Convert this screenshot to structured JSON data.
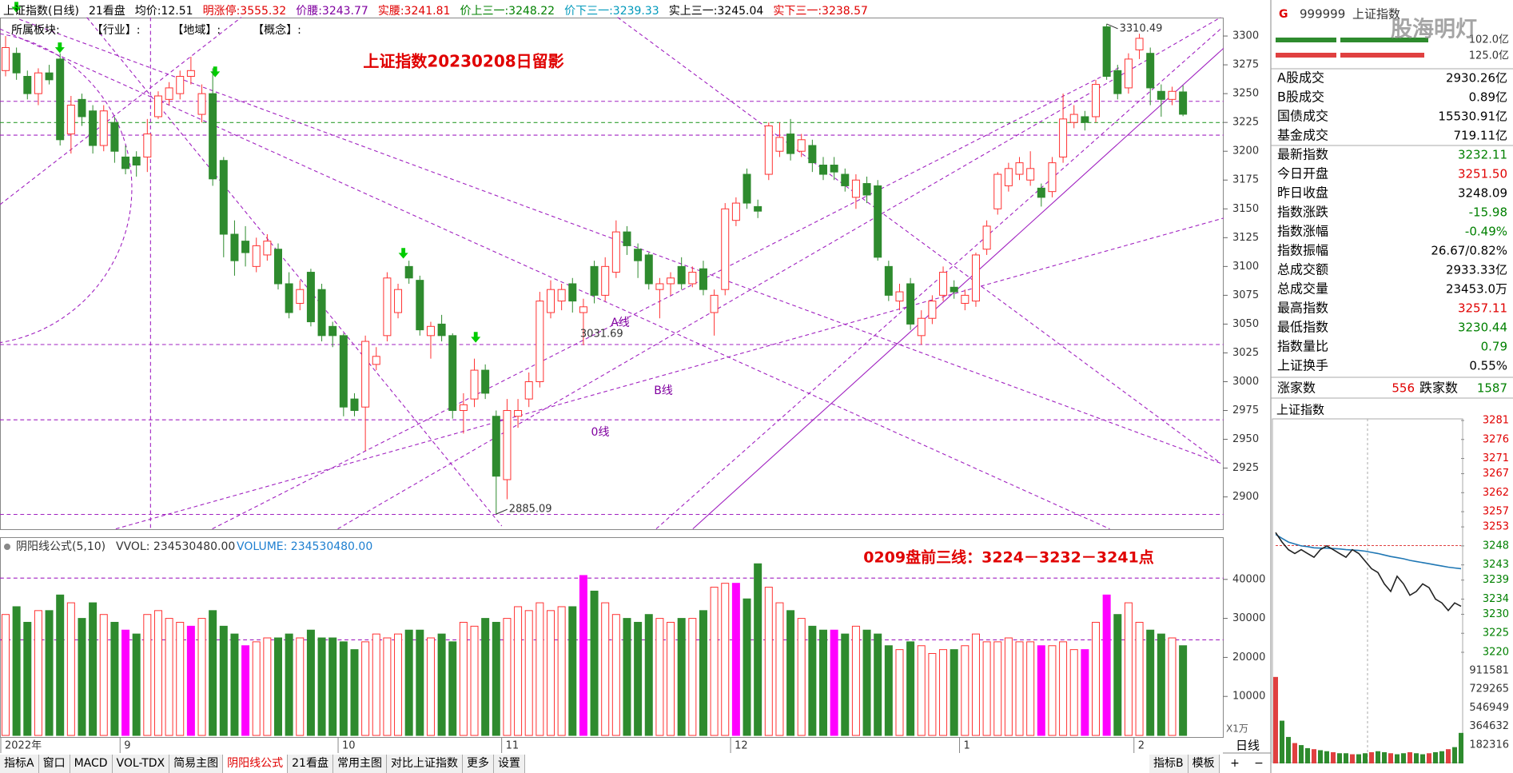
{
  "toolbar": {
    "title": "上证指数(日线)",
    "board": "21看盘",
    "items": [
      {
        "label": "均价:",
        "value": 12.51,
        "color": "#000000"
      },
      {
        "label": "明涨停:",
        "value": 3555.32,
        "color": "#e00000"
      },
      {
        "label": "价腰:",
        "value": 3243.77,
        "color": "#8000a0"
      },
      {
        "label": "实腰:",
        "value": 3241.81,
        "color": "#e00000"
      },
      {
        "label": "价上三一:",
        "value": 3248.22,
        "color": "#008000"
      },
      {
        "label": "价下三一:",
        "value": 3239.33,
        "color": "#0099bb"
      },
      {
        "label": "实上三一:",
        "value": 3245.04,
        "color": "#000000"
      },
      {
        "label": "实下三一:",
        "value": 3238.57,
        "color": "#e00000"
      }
    ],
    "row2": [
      "所属板块:",
      "【行业】:",
      "【地域】:",
      "【概念】:"
    ]
  },
  "chart_data": {
    "type": "candlestick",
    "title": "上证指数20230208日留影",
    "annotations": [
      "0209盘前三线：3224－3232－3241点",
      "A线",
      "B线",
      "0线"
    ],
    "up_color": "#ff3232",
    "down_color": "#2e8b2e",
    "ylim": [
      2872,
      3316
    ],
    "yticks": [
      2900,
      2925,
      2950,
      2975,
      3000,
      3025,
      3050,
      3075,
      3100,
      3125,
      3150,
      3175,
      3200,
      3225,
      3250,
      3275,
      3300
    ],
    "xticks": [
      {
        "value": 0,
        "label": "2022年"
      },
      {
        "value": 11,
        "label": "9"
      },
      {
        "value": 31,
        "label": "10"
      },
      {
        "value": 46,
        "label": "11"
      },
      {
        "value": 67,
        "label": "12"
      },
      {
        "value": 88,
        "label": "1"
      },
      {
        "value": 104,
        "label": "2"
      }
    ],
    "candles": [
      [
        3270,
        3300,
        3265,
        3290
      ],
      [
        3285,
        3290,
        3262,
        3268
      ],
      [
        3265,
        3270,
        3245,
        3250
      ],
      [
        3250,
        3272,
        3240,
        3268
      ],
      [
        3268,
        3275,
        3258,
        3262
      ],
      [
        3280,
        3285,
        3205,
        3210
      ],
      [
        3215,
        3248,
        3198,
        3240
      ],
      [
        3245,
        3250,
        3222,
        3230
      ],
      [
        3235,
        3240,
        3198,
        3205
      ],
      [
        3205,
        3240,
        3200,
        3235
      ],
      [
        3225,
        3230,
        3190,
        3200
      ],
      [
        3195,
        3205,
        3180,
        3185
      ],
      [
        3195,
        3200,
        3178,
        3188
      ],
      [
        3195,
        3228,
        3182,
        3215
      ],
      [
        3230,
        3252,
        3228,
        3248
      ],
      [
        3245,
        3260,
        3240,
        3255
      ],
      [
        3250,
        3270,
        3245,
        3265
      ],
      [
        3265,
        3282,
        3258,
        3270
      ],
      [
        3232,
        3258,
        3225,
        3250
      ],
      [
        3250,
        3272,
        3170,
        3176
      ],
      [
        3192,
        3195,
        3108,
        3128
      ],
      [
        3128,
        3140,
        3092,
        3105
      ],
      [
        3122,
        3135,
        3100,
        3112
      ],
      [
        3100,
        3125,
        3095,
        3118
      ],
      [
        3110,
        3128,
        3105,
        3122
      ],
      [
        3115,
        3120,
        3080,
        3085
      ],
      [
        3085,
        3095,
        3055,
        3060
      ],
      [
        3068,
        3088,
        3062,
        3080
      ],
      [
        3095,
        3098,
        3048,
        3052
      ],
      [
        3080,
        3085,
        3035,
        3040
      ],
      [
        3048,
        3052,
        3030,
        3040
      ],
      [
        3040,
        3042,
        2970,
        2978
      ],
      [
        2985,
        2990,
        2970,
        2975
      ],
      [
        2978,
        3040,
        2940,
        3035
      ],
      [
        3015,
        3030,
        3010,
        3022
      ],
      [
        3040,
        3095,
        3035,
        3090
      ],
      [
        3060,
        3085,
        3055,
        3080
      ],
      [
        3100,
        3105,
        3085,
        3090
      ],
      [
        3088,
        3092,
        3040,
        3045
      ],
      [
        3040,
        3052,
        3020,
        3048
      ],
      [
        3050,
        3058,
        3035,
        3040
      ],
      [
        3040,
        3042,
        2968,
        2975
      ],
      [
        2975,
        2990,
        2955,
        2980
      ],
      [
        2985,
        3020,
        2978,
        3010
      ],
      [
        3010,
        3015,
        2985,
        2990
      ],
      [
        2970,
        2975,
        2885.09,
        2918
      ],
      [
        2915,
        2985,
        2898,
        2975
      ],
      [
        2970,
        2985,
        2960,
        2975
      ],
      [
        2985,
        3008,
        2978,
        3000
      ],
      [
        3000,
        3078,
        2995,
        3070
      ],
      [
        3060,
        3088,
        3055,
        3080
      ],
      [
        3070,
        3085,
        3062,
        3080
      ],
      [
        3085,
        3090,
        3060,
        3070
      ],
      [
        3060,
        3072,
        3031.69,
        3065
      ],
      [
        3100,
        3105,
        3068,
        3075
      ],
      [
        3075,
        3108,
        3070,
        3100
      ],
      [
        3095,
        3140,
        3090,
        3130
      ],
      [
        3130,
        3135,
        3110,
        3118
      ],
      [
        3115,
        3120,
        3090,
        3105
      ],
      [
        3110,
        3112,
        3080,
        3085
      ],
      [
        3080,
        3090,
        3055,
        3085
      ],
      [
        3085,
        3095,
        3075,
        3090
      ],
      [
        3100,
        3108,
        3080,
        3085
      ],
      [
        3085,
        3100,
        3082,
        3095
      ],
      [
        3098,
        3105,
        3075,
        3080
      ],
      [
        3060,
        3080,
        3040,
        3075
      ],
      [
        3080,
        3155,
        3075,
        3150
      ],
      [
        3140,
        3160,
        3135,
        3155
      ],
      [
        3180,
        3185,
        3150,
        3155
      ],
      [
        3152,
        3158,
        3142,
        3148
      ],
      [
        3180,
        3225,
        3175,
        3222
      ],
      [
        3200,
        3225,
        3195,
        3212
      ],
      [
        3215,
        3228,
        3192,
        3198
      ],
      [
        3200,
        3215,
        3195,
        3210
      ],
      [
        3205,
        3210,
        3182,
        3190
      ],
      [
        3188,
        3195,
        3175,
        3180
      ],
      [
        3188,
        3195,
        3175,
        3182
      ],
      [
        3180,
        3185,
        3165,
        3170
      ],
      [
        3160,
        3180,
        3150,
        3175
      ],
      [
        3172,
        3178,
        3155,
        3162
      ],
      [
        3170,
        3175,
        3105,
        3108
      ],
      [
        3100,
        3105,
        3070,
        3075
      ],
      [
        3070,
        3085,
        3062,
        3078
      ],
      [
        3085,
        3090,
        3045,
        3050
      ],
      [
        3040,
        3062,
        3032,
        3055
      ],
      [
        3055,
        3075,
        3050,
        3070
      ],
      [
        3075,
        3100,
        3070,
        3095
      ],
      [
        3082,
        3088,
        3072,
        3078
      ],
      [
        3068,
        3080,
        3062,
        3075
      ],
      [
        3070,
        3112,
        3065,
        3110
      ],
      [
        3115,
        3140,
        3110,
        3135
      ],
      [
        3150,
        3182,
        3145,
        3180
      ],
      [
        3170,
        3190,
        3165,
        3185
      ],
      [
        3180,
        3195,
        3175,
        3190
      ],
      [
        3175,
        3200,
        3170,
        3185
      ],
      [
        3168,
        3172,
        3152,
        3160
      ],
      [
        3165,
        3195,
        3160,
        3190
      ],
      [
        3195,
        3250,
        3190,
        3228
      ],
      [
        3225,
        3240,
        3220,
        3232
      ],
      [
        3230,
        3235,
        3218,
        3225
      ],
      [
        3230,
        3262,
        3225,
        3258
      ],
      [
        3308,
        3310.49,
        3262,
        3265
      ],
      [
        3270,
        3275,
        3245,
        3250
      ],
      [
        3255,
        3285,
        3250,
        3280
      ],
      [
        3288,
        3302,
        3280,
        3298
      ],
      [
        3285,
        3290,
        3240,
        3255
      ],
      [
        3252,
        3258,
        3230,
        3245
      ],
      [
        3245,
        3256,
        3240,
        3252
      ],
      [
        3251.5,
        3257.11,
        3230.44,
        3232.11
      ]
    ],
    "volume": {
      "title": "阴阳线公式(5,10)",
      "vvol": "VVOL: 234530480.00",
      "volume_label": "VOLUME: 234530480.00",
      "unit": "X1万",
      "ylim": [
        0,
        50000
      ],
      "yticks": [
        10000,
        20000,
        30000,
        40000
      ],
      "highlight": [
        11,
        17,
        22,
        53,
        67,
        76,
        95,
        99,
        101
      ],
      "highlight_color": "#ff00ff",
      "values": [
        31000,
        33000,
        29000,
        32000,
        32000,
        36000,
        34000,
        30000,
        34000,
        31000,
        29000,
        27000,
        26000,
        31000,
        32000,
        30000,
        29000,
        28000,
        30000,
        32000,
        28000,
        26000,
        23000,
        24000,
        25000,
        25000,
        26000,
        25000,
        27000,
        25000,
        25000,
        24000,
        22000,
        24000,
        26000,
        25000,
        26000,
        27000,
        27000,
        25000,
        26000,
        24000,
        29000,
        28000,
        30000,
        29000,
        30000,
        33000,
        32000,
        34000,
        32000,
        33000,
        33000,
        41000,
        37000,
        34000,
        31000,
        30000,
        29000,
        31000,
        30000,
        29000,
        30000,
        30000,
        32000,
        38000,
        39000,
        39000,
        35000,
        44000,
        38000,
        34000,
        32000,
        30000,
        28000,
        27000,
        27000,
        26000,
        28000,
        27000,
        26000,
        23000,
        22000,
        24000,
        23000,
        21000,
        22000,
        22000,
        23000,
        26000,
        24000,
        24000,
        25000,
        24000,
        24000,
        23000,
        23000,
        24000,
        22000,
        22000,
        29000,
        36000,
        31000,
        34000,
        29000,
        27000,
        26000,
        25000,
        23000
      ]
    }
  },
  "quote": {
    "market": "G",
    "code": "999999",
    "name": "上证指数",
    "watermark": "股海明灯",
    "buy_label": "102.0亿",
    "sell_label": "125.0亿",
    "rows": [
      {
        "label": "A股成交",
        "value": "2930.26亿",
        "color": "#000000"
      },
      {
        "label": "B股成交",
        "value": "0.89亿",
        "color": "#000000"
      },
      {
        "label": "国债成交",
        "value": "15530.91亿",
        "color": "#000000"
      },
      {
        "label": "基金成交",
        "value": "719.11亿",
        "color": "#000000"
      },
      {
        "label": "最新指数",
        "value": "3232.11",
        "color": "#008000"
      },
      {
        "label": "今日开盘",
        "value": "3251.50",
        "color": "#e00000"
      },
      {
        "label": "昨日收盘",
        "value": "3248.09",
        "color": "#000000"
      },
      {
        "label": "指数涨跌",
        "value": "-15.98",
        "color": "#008000"
      },
      {
        "label": "指数涨幅",
        "value": "-0.49%",
        "color": "#008000"
      },
      {
        "label": "指数振幅",
        "value": "26.67/0.82%",
        "color": "#000000"
      },
      {
        "label": "总成交额",
        "value": "2933.33亿",
        "color": "#000000"
      },
      {
        "label": "总成交量",
        "value": "23453.0万",
        "color": "#000000"
      },
      {
        "label": "最高指数",
        "value": "3257.11",
        "color": "#e00000"
      },
      {
        "label": "最低指数",
        "value": "3230.44",
        "color": "#008000"
      },
      {
        "label": "指数量比",
        "value": "0.79",
        "color": "#008000"
      },
      {
        "label": "上证换手",
        "value": "0.55%",
        "color": "#000000"
      }
    ],
    "up_label": "涨家数",
    "up": 556,
    "down_label": "跌家数",
    "down": 1587
  },
  "intraday": {
    "title": "上证指数",
    "prev_close": 3248.09,
    "ylim": [
      3220,
      3281
    ],
    "yticks": [
      3281,
      3276,
      3271,
      3267,
      3262,
      3257,
      3253,
      3248,
      3243,
      3239,
      3234,
      3230,
      3225,
      3220
    ],
    "price": [
      3251.5,
      3249,
      3247,
      3246,
      3247,
      3246,
      3245,
      3247,
      3248,
      3247,
      3246,
      3245,
      3247,
      3246,
      3244,
      3242,
      3241,
      3238,
      3236,
      3240,
      3238,
      3235,
      3236,
      3238,
      3237,
      3234,
      3233,
      3231,
      3233,
      3232.11
    ],
    "avg": [
      3251,
      3250,
      3249,
      3248.5,
      3248,
      3247.8,
      3247.5,
      3247.4,
      3247.4,
      3247.3,
      3247.2,
      3247,
      3246.9,
      3246.8,
      3246.6,
      3246.3,
      3246,
      3245.6,
      3245.2,
      3244.9,
      3244.6,
      3244.2,
      3243.9,
      3243.6,
      3243.3,
      3243,
      3242.7,
      3242.4,
      3242.2,
      3242
    ],
    "volume": [
      850000,
      420000,
      260000,
      200000,
      180000,
      150000,
      140000,
      130000,
      120000,
      110000,
      100000,
      100000,
      90000,
      90000,
      100000,
      110000,
      120000,
      110000,
      100000,
      90000,
      100000,
      110000,
      100000,
      90000,
      100000,
      110000,
      120000,
      140000,
      160000,
      300000
    ],
    "vol_ylim": [
      0,
      911581
    ],
    "vol_ticks": [
      911581,
      729265,
      546949,
      364632,
      182316
    ]
  },
  "tabs": {
    "left": [
      "指标A",
      "窗口",
      "MACD",
      "VOL-TDX",
      "简易主图",
      "阴阳线公式",
      "21看盘",
      "常用主图",
      "对比上证指数",
      "更多",
      "设置"
    ],
    "active": 5,
    "right": [
      "指标B",
      "模板"
    ],
    "period": "日线",
    "plus": "+",
    "minus": "−"
  }
}
